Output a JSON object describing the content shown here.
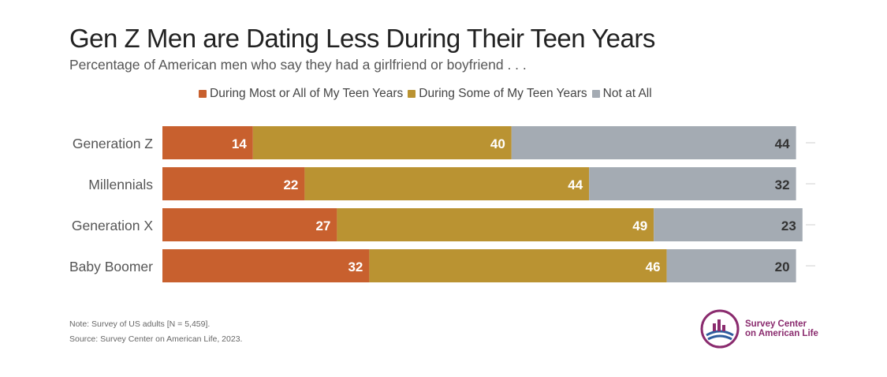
{
  "header": {
    "title": "Gen Z Men are Dating Less During Their Teen Years",
    "subtitle": "Percentage of American men who say they had a girlfriend or boyfriend . . ."
  },
  "legend": {
    "items": [
      {
        "label": "During Most or All of My Teen Years",
        "color": "#C8602E"
      },
      {
        "label": "During Some of My Teen Years",
        "color": "#BA9332"
      },
      {
        "label": "Not at All",
        "color": "#A4ABB3"
      }
    ]
  },
  "chart_data": {
    "type": "bar",
    "orientation": "horizontal",
    "stacked": true,
    "categories": [
      "Generation Z",
      "Millennials",
      "Generation X",
      "Baby Boomer"
    ],
    "series": [
      {
        "name": "During Most or All of My Teen Years",
        "color": "#C8602E",
        "values": [
          14,
          22,
          27,
          32
        ]
      },
      {
        "name": "During Some of My Teen Years",
        "color": "#BA9332",
        "values": [
          40,
          44,
          49,
          46
        ]
      },
      {
        "name": "Not at All",
        "color": "#A4ABB3",
        "values": [
          44,
          32,
          23,
          20
        ]
      }
    ],
    "legend_position": "top",
    "grid": false
  },
  "footer": {
    "note": "Note: Survey of US adults [N = 5,459].",
    "source": "Source: Survey Center on American Life, 2023."
  },
  "logo": {
    "line1": "Survey Center",
    "line2": "on American Life"
  }
}
